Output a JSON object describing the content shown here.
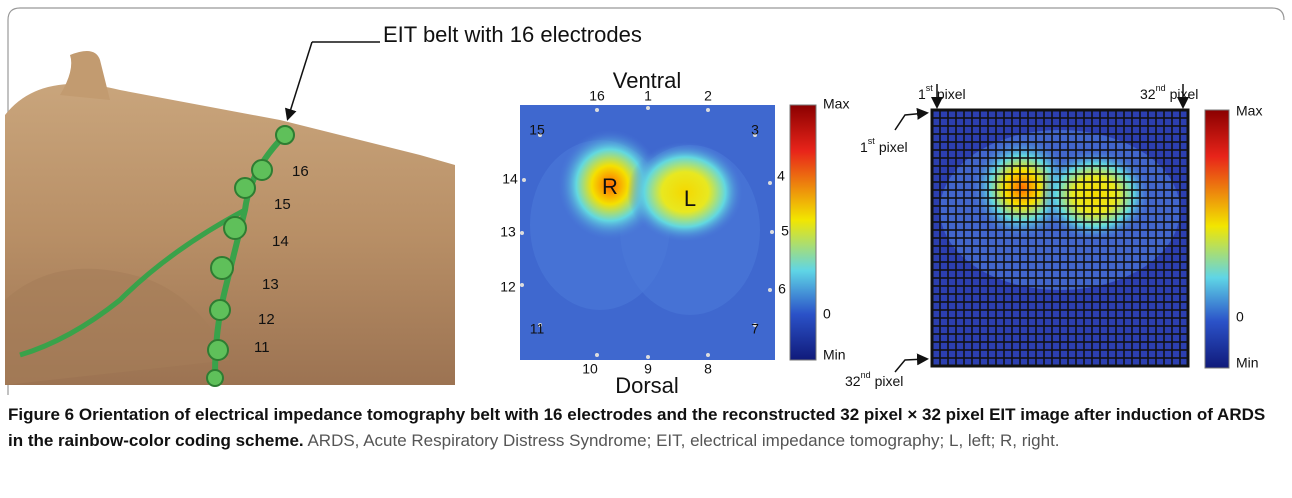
{
  "photo": {
    "title": "EIT belt with 16 electrodes",
    "electrodes": [
      "16",
      "15",
      "14",
      "13",
      "12",
      "11"
    ]
  },
  "eit_image": {
    "top": "Ventral",
    "bottom": "Dorsal",
    "electrodes": [
      "1",
      "2",
      "3",
      "4",
      "5",
      "6",
      "7",
      "8",
      "9",
      "10",
      "11",
      "12",
      "13",
      "14",
      "15",
      "16"
    ],
    "lungs": [
      "R",
      "L"
    ],
    "colorbar": [
      "Max",
      "0",
      "Min"
    ]
  },
  "pixel_image": {
    "pixel_labels": [
      {
        "number": "1",
        "suffix": "st",
        "text": "pixel"
      },
      {
        "number": "32",
        "suffix": "nd",
        "text": "pixel"
      },
      {
        "number": "1",
        "suffix": "st",
        "text": "pixel"
      },
      {
        "number": "32",
        "suffix": "nd",
        "text": "pixel"
      }
    ],
    "colorbar": [
      "Max",
      "0",
      "Min"
    ]
  },
  "caption": {
    "label": "Figure 6",
    "title": "Orientation of electrical impedance tomography belt with 16 electrodes and the reconstructed 32 pixel × 32 pixel EIT image after induction of ARDS in the rainbow-color coding scheme.",
    "text": "ARDS, Acute Respiratory Distress Syndrome; EIT, electrical impedance tomography; L, left; R, right."
  }
}
